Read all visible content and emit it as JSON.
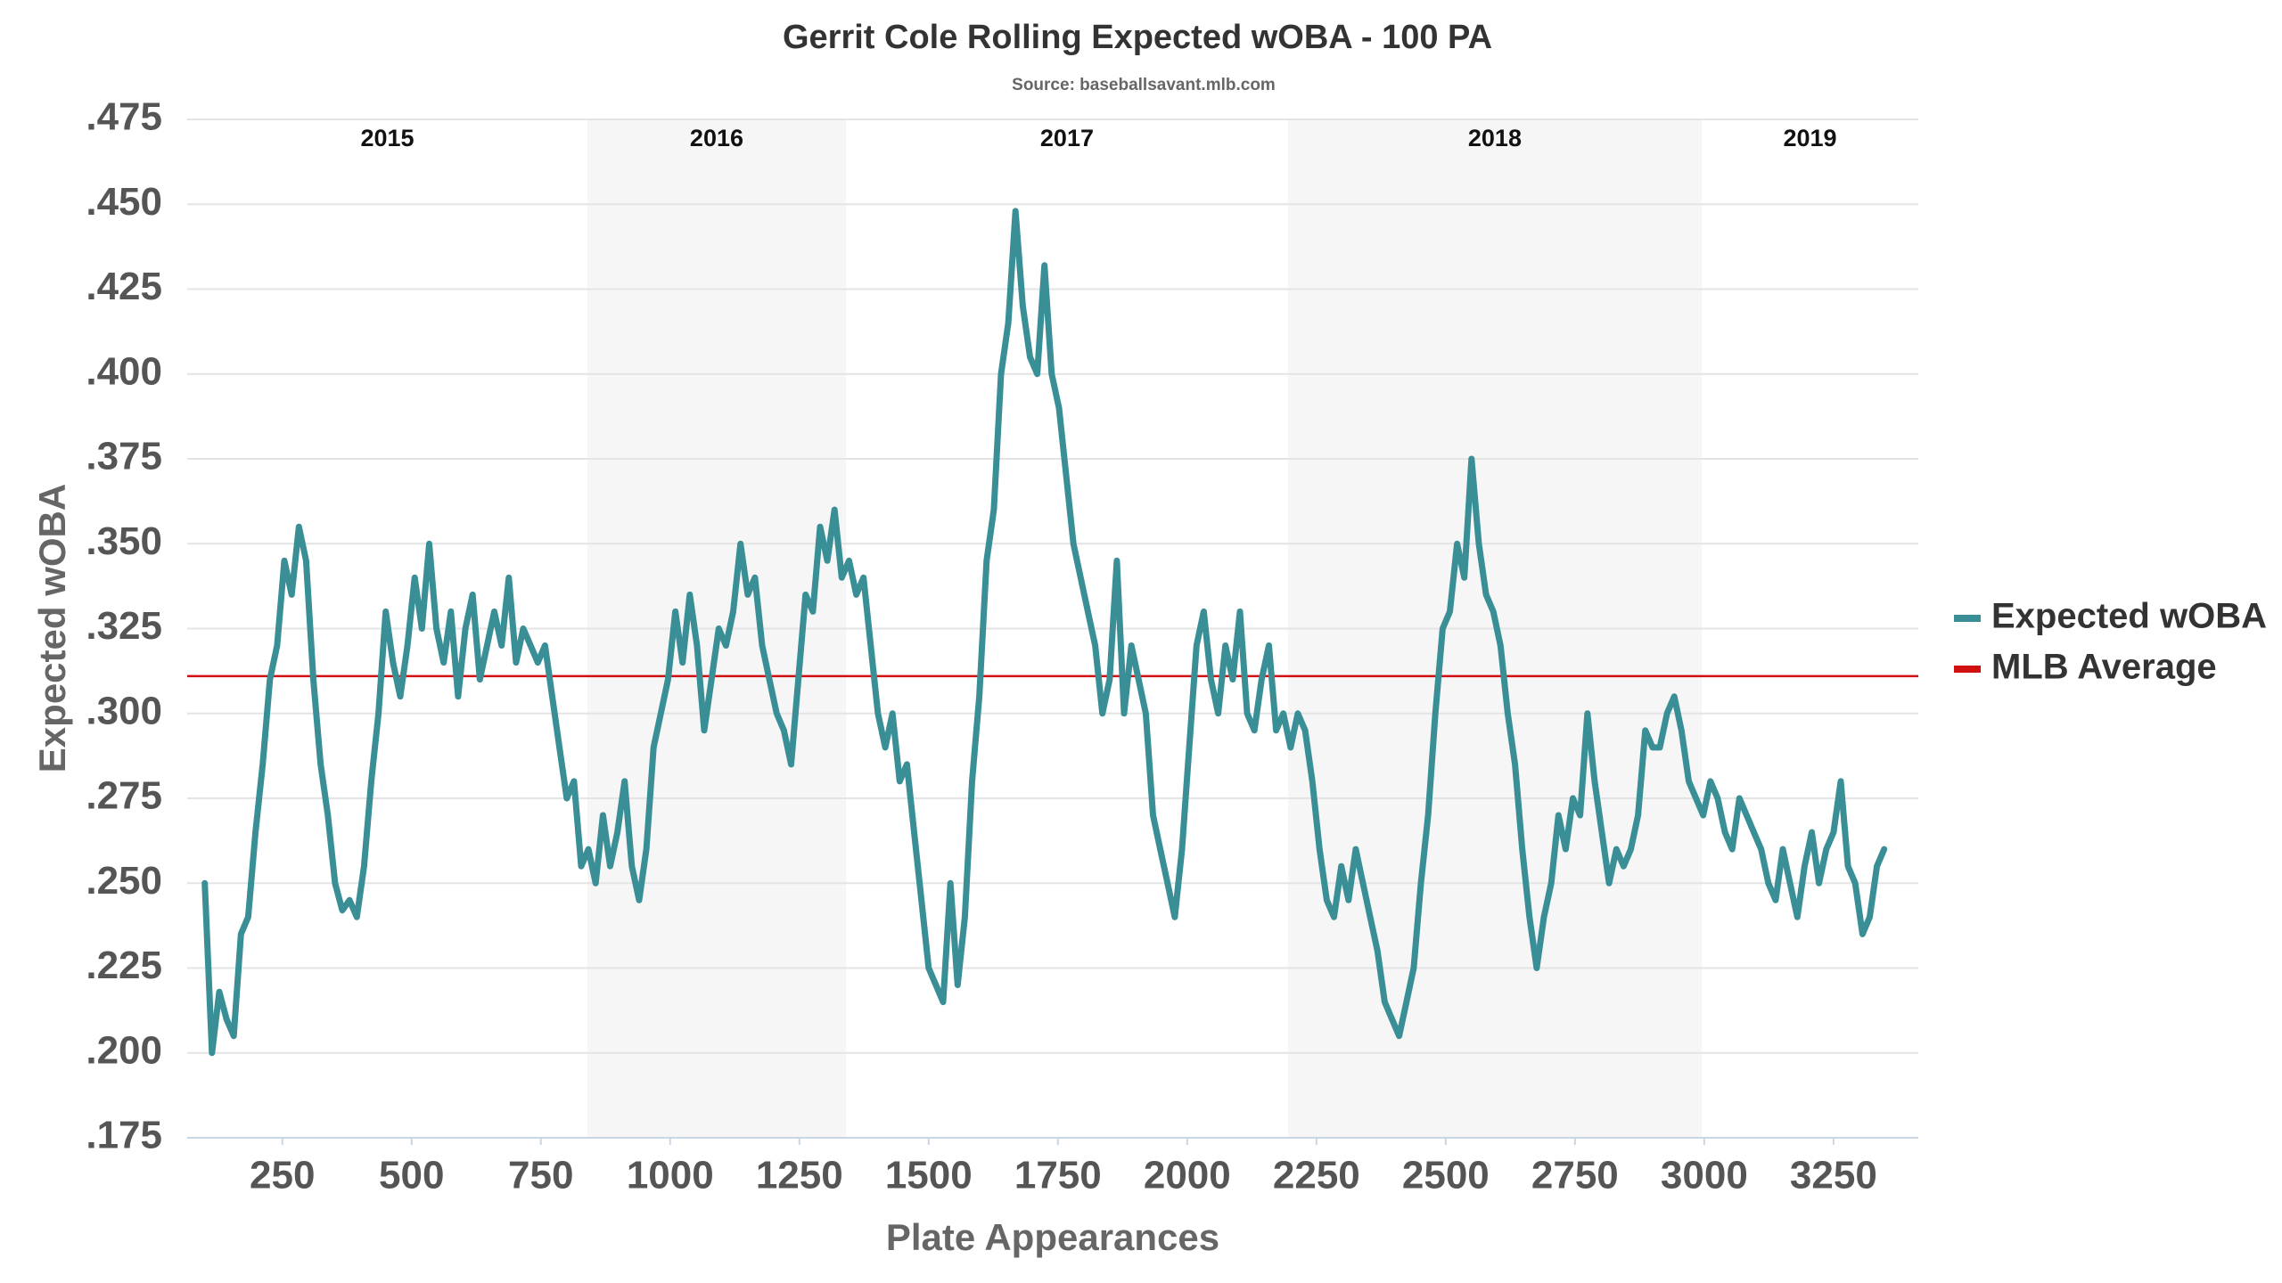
{
  "chart_data": {
    "type": "line",
    "title": "Gerrit Cole Rolling Expected wOBA - 100 PA",
    "subtitle": "Source: baseballsavant.mlb.com",
    "x_label": "Plate Appearances",
    "y_label": "Expected wOBA",
    "xlim": [
      66,
      3414
    ],
    "ylim": [
      0.175,
      0.475
    ],
    "xticks": [
      250,
      500,
      750,
      1000,
      1250,
      1500,
      1750,
      2000,
      2250,
      2500,
      2750,
      3000,
      3250
    ],
    "yticks": [
      {
        "value": 0.175,
        "label": ".175"
      },
      {
        "value": 0.2,
        "label": ".200"
      },
      {
        "value": 0.225,
        "label": ".225"
      },
      {
        "value": 0.25,
        "label": ".250"
      },
      {
        "value": 0.275,
        "label": ".275"
      },
      {
        "value": 0.3,
        "label": ".300"
      },
      {
        "value": 0.325,
        "label": ".325"
      },
      {
        "value": 0.35,
        "label": ".350"
      },
      {
        "value": 0.375,
        "label": ".375"
      },
      {
        "value": 0.4,
        "label": ".400"
      },
      {
        "value": 0.425,
        "label": ".425"
      },
      {
        "value": 0.45,
        "label": ".450"
      },
      {
        "value": 0.475,
        "label": ".475"
      }
    ],
    "grid": true,
    "legend": "right",
    "seasons": [
      {
        "label": "2015",
        "start": 66,
        "end": 840
      },
      {
        "label": "2016",
        "start": 840,
        "end": 1340
      },
      {
        "label": "2017",
        "start": 1340,
        "end": 2195
      },
      {
        "label": "2018",
        "start": 2195,
        "end": 2995
      },
      {
        "label": "2019",
        "start": 2995,
        "end": 3414
      }
    ],
    "reference_lines": [
      {
        "name": "MLB Average",
        "value": 0.311,
        "color": "#d01010"
      }
    ],
    "series": [
      {
        "name": "Expected wOBA",
        "color": "#3a8f97",
        "x": [
          100,
          114,
          128,
          142,
          156,
          170,
          184,
          198,
          212,
          226,
          240,
          254,
          268,
          282,
          296,
          310,
          324,
          338,
          352,
          366,
          380,
          394,
          408,
          422,
          436,
          450,
          464,
          478,
          492,
          506,
          520,
          534,
          548,
          562,
          576,
          590,
          604,
          618,
          632,
          646,
          660,
          674,
          688,
          702,
          716,
          730,
          744,
          758,
          772,
          786,
          800,
          814,
          828,
          842,
          856,
          870,
          884,
          898,
          912,
          926,
          940,
          954,
          968,
          982,
          996,
          1010,
          1024,
          1038,
          1052,
          1066,
          1080,
          1094,
          1108,
          1122,
          1136,
          1150,
          1164,
          1178,
          1192,
          1206,
          1220,
          1234,
          1248,
          1262,
          1276,
          1290,
          1304,
          1318,
          1332,
          1346,
          1360,
          1374,
          1388,
          1402,
          1416,
          1430,
          1444,
          1458,
          1472,
          1486,
          1500,
          1514,
          1528,
          1542,
          1556,
          1570,
          1584,
          1598,
          1612,
          1626,
          1640,
          1654,
          1668,
          1682,
          1696,
          1710,
          1724,
          1738,
          1752,
          1766,
          1780,
          1794,
          1808,
          1822,
          1836,
          1850,
          1864,
          1878,
          1892,
          1906,
          1920,
          1934,
          1948,
          1962,
          1976,
          1990,
          2004,
          2018,
          2032,
          2046,
          2060,
          2074,
          2088,
          2102,
          2116,
          2130,
          2144,
          2158,
          2172,
          2186,
          2200,
          2214,
          2228,
          2242,
          2256,
          2270,
          2284,
          2298,
          2312,
          2326,
          2340,
          2354,
          2368,
          2382,
          2396,
          2410,
          2424,
          2438,
          2452,
          2466,
          2480,
          2494,
          2508,
          2522,
          2536,
          2550,
          2564,
          2578,
          2592,
          2606,
          2620,
          2634,
          2648,
          2662,
          2676,
          2690,
          2704,
          2718,
          2732,
          2746,
          2760,
          2774,
          2788,
          2802,
          2816,
          2830,
          2844,
          2858,
          2872,
          2886,
          2900,
          2914,
          2928,
          2942,
          2956,
          2970,
          2984,
          2998,
          3012,
          3026,
          3040,
          3054,
          3068,
          3082,
          3096,
          3110,
          3124,
          3138,
          3152,
          3166,
          3180,
          3194,
          3208,
          3222,
          3236,
          3250,
          3264,
          3278,
          3292,
          3306,
          3320,
          3334,
          3348
        ],
        "values": [
          0.25,
          0.2,
          0.218,
          0.21,
          0.205,
          0.235,
          0.24,
          0.265,
          0.285,
          0.31,
          0.32,
          0.345,
          0.335,
          0.355,
          0.345,
          0.31,
          0.285,
          0.27,
          0.25,
          0.242,
          0.245,
          0.24,
          0.255,
          0.28,
          0.3,
          0.33,
          0.315,
          0.305,
          0.32,
          0.34,
          0.325,
          0.35,
          0.325,
          0.315,
          0.33,
          0.305,
          0.325,
          0.335,
          0.31,
          0.32,
          0.33,
          0.32,
          0.34,
          0.315,
          0.325,
          0.32,
          0.315,
          0.32,
          0.305,
          0.29,
          0.275,
          0.28,
          0.255,
          0.26,
          0.25,
          0.27,
          0.255,
          0.265,
          0.28,
          0.255,
          0.245,
          0.26,
          0.29,
          0.3,
          0.31,
          0.33,
          0.315,
          0.335,
          0.32,
          0.295,
          0.31,
          0.325,
          0.32,
          0.33,
          0.35,
          0.335,
          0.34,
          0.32,
          0.31,
          0.3,
          0.295,
          0.285,
          0.31,
          0.335,
          0.33,
          0.355,
          0.345,
          0.36,
          0.34,
          0.345,
          0.335,
          0.34,
          0.32,
          0.3,
          0.29,
          0.3,
          0.28,
          0.285,
          0.265,
          0.245,
          0.225,
          0.22,
          0.215,
          0.25,
          0.22,
          0.24,
          0.28,
          0.305,
          0.345,
          0.36,
          0.4,
          0.415,
          0.448,
          0.42,
          0.405,
          0.4,
          0.432,
          0.4,
          0.39,
          0.37,
          0.35,
          0.34,
          0.33,
          0.32,
          0.3,
          0.31,
          0.345,
          0.3,
          0.32,
          0.31,
          0.3,
          0.27,
          0.26,
          0.25,
          0.24,
          0.26,
          0.29,
          0.32,
          0.33,
          0.31,
          0.3,
          0.32,
          0.31,
          0.33,
          0.3,
          0.295,
          0.31,
          0.32,
          0.295,
          0.3,
          0.29,
          0.3,
          0.295,
          0.28,
          0.26,
          0.245,
          0.24,
          0.255,
          0.245,
          0.26,
          0.25,
          0.24,
          0.23,
          0.215,
          0.21,
          0.205,
          0.215,
          0.225,
          0.25,
          0.27,
          0.3,
          0.325,
          0.33,
          0.35,
          0.34,
          0.375,
          0.35,
          0.335,
          0.33,
          0.32,
          0.3,
          0.285,
          0.26,
          0.24,
          0.225,
          0.24,
          0.25,
          0.27,
          0.26,
          0.275,
          0.27,
          0.3,
          0.28,
          0.265,
          0.25,
          0.26,
          0.255,
          0.26,
          0.27,
          0.295,
          0.29,
          0.29,
          0.3,
          0.305,
          0.295,
          0.28,
          0.275,
          0.27,
          0.28,
          0.275,
          0.265,
          0.26,
          0.275,
          0.27,
          0.265,
          0.26,
          0.25,
          0.245,
          0.26,
          0.25,
          0.24,
          0.255,
          0.265,
          0.25,
          0.26,
          0.265,
          0.28,
          0.255,
          0.25,
          0.235,
          0.24,
          0.255,
          0.26
        ]
      }
    ]
  }
}
